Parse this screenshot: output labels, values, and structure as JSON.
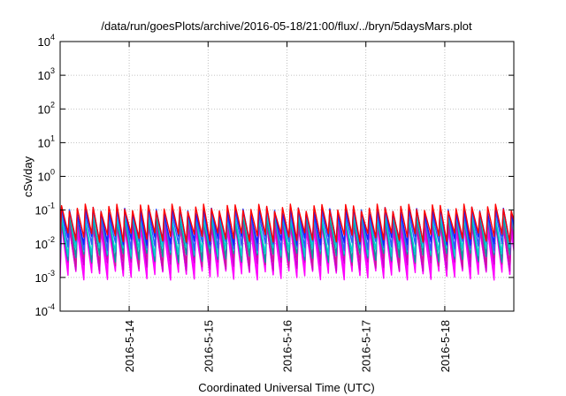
{
  "chart_data": {
    "type": "line",
    "title": "/data/run/goesPlots/archive/2016-05-18/21:00/flux/../bryn/5daysMars.plot",
    "xlabel": "Coordinated Universal Time (UTC)",
    "ylabel": "cSv/day",
    "x_range": [
      "2016-05-13T03:00",
      "2016-05-18T21:00"
    ],
    "y_scale": "log",
    "ylim": [
      0.0001,
      10000
    ],
    "y_ticks": [
      {
        "base": "10",
        "exp": "-4",
        "value": 0.0001
      },
      {
        "base": "10",
        "exp": "-3",
        "value": 0.001
      },
      {
        "base": "10",
        "exp": "-2",
        "value": 0.01
      },
      {
        "base": "10",
        "exp": "-1",
        "value": 0.1
      },
      {
        "base": "10",
        "exp": "0",
        "value": 1
      },
      {
        "base": "10",
        "exp": "1",
        "value": 10
      },
      {
        "base": "10",
        "exp": "2",
        "value": 100
      },
      {
        "base": "10",
        "exp": "3",
        "value": 1000
      },
      {
        "base": "10",
        "exp": "4",
        "value": 10000
      }
    ],
    "x_ticks": [
      {
        "label": "2016-5-14",
        "date": "2016-05-14"
      },
      {
        "label": "2016-5-15",
        "date": "2016-05-15"
      },
      {
        "label": "2016-5-16",
        "date": "2016-05-16"
      },
      {
        "label": "2016-5-17",
        "date": "2016-05-17"
      },
      {
        "label": "2016-5-18",
        "date": "2016-05-18"
      }
    ],
    "grid": true,
    "series_pattern": {
      "cycle_hours": 2.4,
      "rise_fraction": 0.18
    },
    "series": [
      {
        "color": "#ff00ff",
        "peak": 0.03,
        "trough": 0.0012
      },
      {
        "color": "#ff00ff",
        "peak": 0.035,
        "trough": 0.0016
      },
      {
        "color": "#cc00cc",
        "peak": 0.04,
        "trough": 0.0022
      },
      {
        "color": "#cc1a9a",
        "peak": 0.05,
        "trough": 0.003
      },
      {
        "color": "#009e9e",
        "peak": 0.06,
        "trough": 0.004
      },
      {
        "color": "#00d0d0",
        "peak": 0.07,
        "trough": 0.006
      },
      {
        "color": "#3355ff",
        "peak": 0.09,
        "trough": 0.009
      },
      {
        "color": "#1a1aff",
        "peak": 0.1,
        "trough": 0.013
      },
      {
        "color": "#ff0000",
        "peak": 0.12,
        "trough": 0.016
      }
    ]
  }
}
